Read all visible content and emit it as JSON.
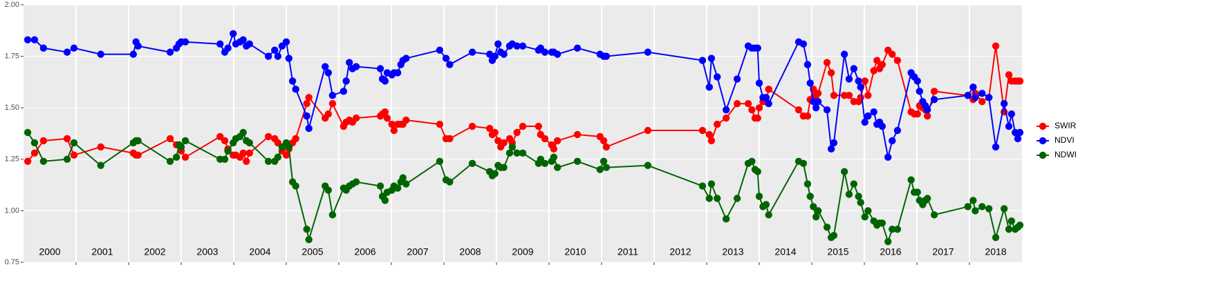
{
  "chart_data": {
    "type": "line",
    "x": [
      2000.08,
      2000.21,
      2000.38,
      2000.83,
      2000.96,
      2001.47,
      2002.09,
      2002.14,
      2002.18,
      2002.79,
      2002.91,
      2002.96,
      2003.0,
      2003.08,
      2003.74,
      2003.83,
      2003.89,
      2003.99,
      2004.04,
      2004.12,
      2004.18,
      2004.24,
      2004.3,
      2004.66,
      2004.78,
      2004.84,
      2004.92,
      2005.0,
      2005.05,
      2005.12,
      2005.18,
      2005.39,
      2005.43,
      2005.74,
      2005.8,
      2005.88,
      2006.09,
      2006.14,
      2006.2,
      2006.26,
      2006.33,
      2006.79,
      2006.83,
      2006.88,
      2006.92,
      2007.01,
      2007.05,
      2007.12,
      2007.18,
      2007.22,
      2007.28,
      2007.92,
      2008.04,
      2008.11,
      2008.54,
      2008.87,
      2008.92,
      2008.97,
      2009.03,
      2009.08,
      2009.14,
      2009.25,
      2009.3,
      2009.39,
      2009.5,
      2009.8,
      2009.84,
      2009.92,
      2010.05,
      2010.09,
      2010.16,
      2010.54,
      2010.97,
      2011.04,
      2011.09,
      2011.88,
      2012.92,
      2013.05,
      2013.09,
      2013.2,
      2013.37,
      2013.58,
      2013.79,
      2013.86,
      2013.92,
      2013.97,
      2014.0,
      2014.07,
      2014.13,
      2014.18,
      2014.75,
      2014.84,
      2014.92,
      2014.97,
      2015.03,
      2015.08,
      2015.12,
      2015.29,
      2015.37,
      2015.42,
      2015.62,
      2015.71,
      2015.8,
      2015.89,
      2015.93,
      2016.01,
      2016.07,
      2016.18,
      2016.24,
      2016.29,
      2016.34,
      2016.45,
      2016.53,
      2016.63,
      2016.89,
      2016.95,
      2017.01,
      2017.05,
      2017.11,
      2017.16,
      2017.2,
      2017.33,
      2017.97,
      2018.07,
      2018.11,
      2018.24,
      2018.37,
      2018.5,
      2018.66,
      2018.75,
      2018.8,
      2018.87,
      2018.92,
      2018.96
    ],
    "series": [
      {
        "name": "SWIR",
        "color": "#ff0000",
        "values": [
          1.24,
          1.28,
          1.34,
          1.35,
          1.27,
          1.31,
          1.28,
          1.27,
          1.27,
          1.35,
          1.32,
          1.32,
          1.29,
          1.26,
          1.36,
          1.34,
          1.3,
          1.27,
          1.27,
          1.26,
          1.28,
          1.24,
          1.28,
          1.36,
          1.35,
          1.33,
          1.29,
          1.27,
          1.3,
          1.33,
          1.35,
          1.52,
          1.55,
          1.45,
          1.47,
          1.52,
          1.41,
          1.43,
          1.44,
          1.43,
          1.45,
          1.46,
          1.47,
          1.48,
          1.45,
          1.42,
          1.39,
          1.42,
          1.42,
          1.42,
          1.44,
          1.42,
          1.35,
          1.35,
          1.41,
          1.4,
          1.37,
          1.38,
          1.34,
          1.31,
          1.33,
          1.35,
          1.33,
          1.38,
          1.41,
          1.41,
          1.37,
          1.35,
          1.32,
          1.3,
          1.34,
          1.37,
          1.36,
          1.34,
          1.31,
          1.39,
          1.39,
          1.37,
          1.34,
          1.42,
          1.45,
          1.52,
          1.52,
          1.49,
          1.45,
          1.45,
          1.5,
          1.53,
          1.53,
          1.59,
          1.49,
          1.46,
          1.46,
          1.54,
          1.59,
          1.56,
          1.57,
          1.72,
          1.67,
          1.56,
          1.56,
          1.56,
          1.53,
          1.53,
          1.55,
          1.63,
          1.56,
          1.68,
          1.73,
          1.69,
          1.71,
          1.78,
          1.76,
          1.73,
          1.48,
          1.47,
          1.47,
          1.51,
          1.5,
          1.49,
          1.46,
          1.58,
          1.56,
          1.54,
          1.57,
          1.53,
          1.55,
          1.8,
          1.48,
          1.66,
          1.63,
          1.63,
          1.63,
          1.63
        ]
      },
      {
        "name": "NDVI",
        "color": "#0000ff",
        "values": [
          1.83,
          1.83,
          1.79,
          1.77,
          1.79,
          1.76,
          1.76,
          1.82,
          1.8,
          1.77,
          1.79,
          1.81,
          1.82,
          1.82,
          1.81,
          1.77,
          1.79,
          1.86,
          1.81,
          1.82,
          1.83,
          1.8,
          1.81,
          1.75,
          1.78,
          1.75,
          1.8,
          1.82,
          1.74,
          1.63,
          1.59,
          1.46,
          1.4,
          1.7,
          1.67,
          1.56,
          1.58,
          1.63,
          1.72,
          1.69,
          1.7,
          1.69,
          1.64,
          1.63,
          1.67,
          1.66,
          1.67,
          1.67,
          1.71,
          1.73,
          1.74,
          1.78,
          1.74,
          1.71,
          1.77,
          1.76,
          1.73,
          1.75,
          1.81,
          1.77,
          1.76,
          1.8,
          1.81,
          1.8,
          1.8,
          1.78,
          1.79,
          1.77,
          1.77,
          1.77,
          1.76,
          1.79,
          1.76,
          1.75,
          1.75,
          1.77,
          1.73,
          1.6,
          1.74,
          1.65,
          1.49,
          1.64,
          1.8,
          1.79,
          1.79,
          1.79,
          1.62,
          1.55,
          1.55,
          1.52,
          1.82,
          1.81,
          1.71,
          1.62,
          1.53,
          1.5,
          1.53,
          1.49,
          1.3,
          1.33,
          1.76,
          1.64,
          1.69,
          1.63,
          1.6,
          1.43,
          1.46,
          1.48,
          1.42,
          1.43,
          1.41,
          1.26,
          1.34,
          1.39,
          1.67,
          1.65,
          1.63,
          1.58,
          1.53,
          1.51,
          1.49,
          1.54,
          1.56,
          1.6,
          1.55,
          1.57,
          1.55,
          1.31,
          1.52,
          1.41,
          1.47,
          1.38,
          1.35,
          1.38
        ]
      },
      {
        "name": "NDWI",
        "color": "#006400",
        "values": [
          1.38,
          1.33,
          1.24,
          1.25,
          1.33,
          1.22,
          1.33,
          1.34,
          1.34,
          1.24,
          1.26,
          1.32,
          1.31,
          1.34,
          1.25,
          1.25,
          1.29,
          1.33,
          1.35,
          1.36,
          1.38,
          1.34,
          1.33,
          1.24,
          1.24,
          1.26,
          1.31,
          1.33,
          1.31,
          1.14,
          1.12,
          0.91,
          0.86,
          1.12,
          1.1,
          0.98,
          1.11,
          1.1,
          1.12,
          1.13,
          1.14,
          1.12,
          1.07,
          1.05,
          1.09,
          1.1,
          1.12,
          1.11,
          1.14,
          1.16,
          1.13,
          1.24,
          1.15,
          1.14,
          1.23,
          1.19,
          1.17,
          1.18,
          1.22,
          1.21,
          1.21,
          1.28,
          1.31,
          1.28,
          1.28,
          1.23,
          1.25,
          1.23,
          1.24,
          1.26,
          1.21,
          1.24,
          1.2,
          1.24,
          1.21,
          1.22,
          1.12,
          1.06,
          1.13,
          1.06,
          0.96,
          1.06,
          1.23,
          1.24,
          1.2,
          1.19,
          1.07,
          1.02,
          1.03,
          0.98,
          1.24,
          1.23,
          1.13,
          1.07,
          1.02,
          0.97,
          1.0,
          0.92,
          0.87,
          0.88,
          1.19,
          1.08,
          1.13,
          1.07,
          1.04,
          0.97,
          1.0,
          0.95,
          0.93,
          0.94,
          0.94,
          0.85,
          0.91,
          0.91,
          1.15,
          1.09,
          1.09,
          1.05,
          1.03,
          1.05,
          1.06,
          0.98,
          1.02,
          1.05,
          1.0,
          1.02,
          1.01,
          0.87,
          1.01,
          0.91,
          0.95,
          0.91,
          0.92,
          0.93
        ]
      }
    ],
    "xlim": [
      2000,
      2019
    ],
    "xticks": [
      {
        "value": 2000.5,
        "label": "2000"
      },
      {
        "value": 2001.5,
        "label": "2001"
      },
      {
        "value": 2002.5,
        "label": "2002"
      },
      {
        "value": 2003.5,
        "label": "2003"
      },
      {
        "value": 2004.5,
        "label": "2004"
      },
      {
        "value": 2005.5,
        "label": "2005"
      },
      {
        "value": 2006.5,
        "label": "2006"
      },
      {
        "value": 2007.5,
        "label": "2007"
      },
      {
        "value": 2008.5,
        "label": "2008"
      },
      {
        "value": 2009.5,
        "label": "2009"
      },
      {
        "value": 2010.5,
        "label": "2010"
      },
      {
        "value": 2011.5,
        "label": "2011"
      },
      {
        "value": 2012.5,
        "label": "2012"
      },
      {
        "value": 2013.5,
        "label": "2013"
      },
      {
        "value": 2014.5,
        "label": "2014"
      },
      {
        "value": 2015.5,
        "label": "2015"
      },
      {
        "value": 2016.5,
        "label": "2016"
      },
      {
        "value": 2017.5,
        "label": "2017"
      },
      {
        "value": 2018.5,
        "label": "2018"
      }
    ],
    "ylim": [
      0.75,
      2.0
    ],
    "yticks": [
      {
        "value": 0.75,
        "label": "0.75"
      },
      {
        "value": 1.0,
        "label": "1.00"
      },
      {
        "value": 1.25,
        "label": "1.25"
      },
      {
        "value": 1.5,
        "label": "1.50"
      },
      {
        "value": 1.75,
        "label": "1.75"
      },
      {
        "value": 2.0,
        "label": "2.00"
      }
    ],
    "grid": true,
    "legend": "right"
  }
}
